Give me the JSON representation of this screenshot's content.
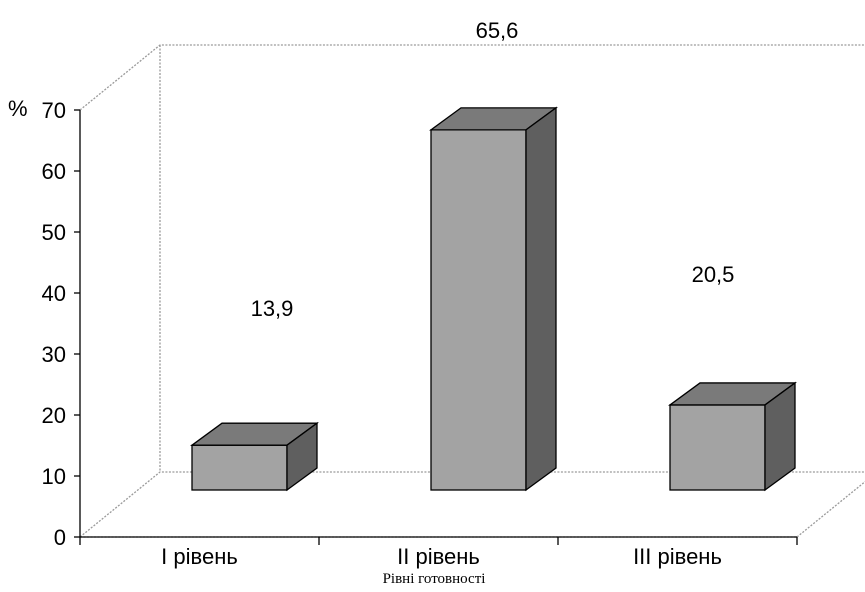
{
  "chart_data": {
    "type": "bar",
    "title": "",
    "xlabel": "Рівні готовності",
    "ylabel": "%",
    "categories": [
      "I рівень",
      "II рівень",
      "III рівень"
    ],
    "values": [
      13.9,
      65.6,
      20.5
    ],
    "data_labels": [
      "13,9",
      "65,6",
      "20,5"
    ],
    "y_ticks": [
      "0",
      "10",
      "20",
      "30",
      "40",
      "50",
      "60",
      "70"
    ],
    "ylim": [
      0,
      70
    ],
    "style": "3d-column",
    "grid": false,
    "colors": {
      "front": "#a3a3a3",
      "top": "#7a7a7a",
      "side": "#5f5f5f",
      "wall": "#9a9a9a"
    }
  }
}
